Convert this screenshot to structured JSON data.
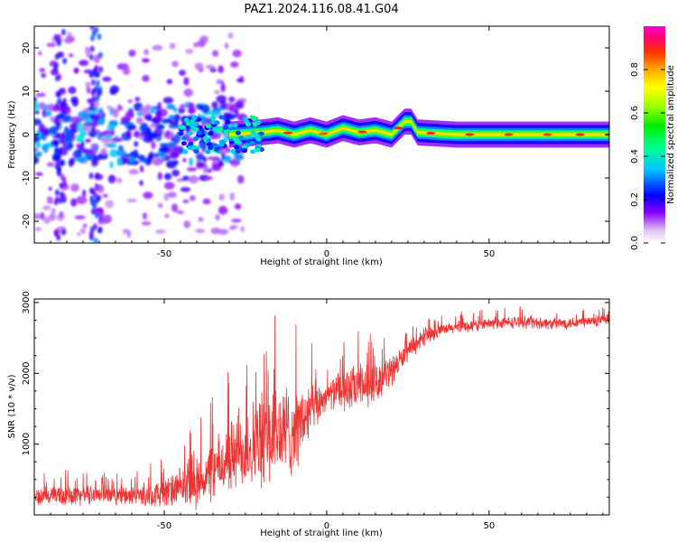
{
  "chart_data": [
    {
      "type": "heatmap",
      "title": "PAZ1.2024.116.08.41.G04",
      "xlabel": "Height of straight line (km)",
      "ylabel": "Frequency (Hz)",
      "xlim": [
        -90,
        87
      ],
      "ylim": [
        -25,
        25
      ],
      "x_ticks": [
        -50,
        0,
        50
      ],
      "x_tick_labels": [
        "-50",
        "0",
        "50"
      ],
      "y_ticks": [
        -20,
        -10,
        0,
        10,
        20
      ],
      "y_tick_labels": [
        "-20",
        "-10",
        "0",
        "10",
        "20"
      ],
      "colorbar": {
        "label": "Normalized spectral amplitude",
        "range": [
          0,
          1
        ],
        "ticks": [
          0.0,
          0.2,
          0.4,
          0.6,
          0.8
        ],
        "tick_labels": [
          "0.0",
          "0.2",
          "0.4",
          "0.6",
          "0.8"
        ],
        "colormap": "gist_ncar (white-purple-blue-cyan-green-yellow-orange-red-magenta)"
      },
      "ridge": {
        "description_points_x": [
          -30,
          -20,
          -15,
          -10,
          -5,
          0,
          5,
          10,
          15,
          20,
          24,
          26,
          28,
          40,
          60,
          87
        ],
        "description_points_y": [
          0,
          0.5,
          1,
          0,
          1,
          0,
          1.5,
          0.5,
          1,
          0,
          3,
          3,
          0.5,
          0,
          0,
          0
        ],
        "peak_amplitude": 1.0
      },
      "scatter_region": {
        "x_range": [
          -90,
          -25
        ],
        "y_range": [
          -25,
          25
        ]
      }
    },
    {
      "type": "line",
      "xlabel": "Height of straight line (km)",
      "ylabel": "SNR (10 * v/v)",
      "xlim": [
        -90,
        87
      ],
      "ylim": [
        0,
        3050
      ],
      "x_ticks": [
        -50,
        0,
        50
      ],
      "x_tick_labels": [
        "-50",
        "0",
        "50"
      ],
      "y_ticks": [
        1000,
        2000,
        3000
      ],
      "y_tick_labels": [
        "1000",
        "2000",
        "3000"
      ],
      "color": "#ee3333",
      "envelope": {
        "x": [
          -90,
          -80,
          -70,
          -60,
          -50,
          -40,
          -35,
          -30,
          -25,
          -20,
          -15,
          -10,
          -5,
          0,
          5,
          10,
          15,
          20,
          25,
          30,
          35,
          40,
          50,
          60,
          70,
          80,
          87
        ],
        "mean": [
          250,
          280,
          300,
          260,
          300,
          450,
          600,
          800,
          950,
          1050,
          1150,
          1200,
          1450,
          1700,
          1750,
          1800,
          1850,
          2050,
          2300,
          2500,
          2600,
          2650,
          2700,
          2730,
          2700,
          2730,
          2750
        ],
        "spread": [
          150,
          180,
          150,
          150,
          250,
          400,
          500,
          600,
          700,
          800,
          900,
          700,
          500,
          200,
          350,
          400,
          300,
          250,
          150,
          120,
          100,
          100,
          100,
          100,
          100,
          100,
          100
        ]
      }
    }
  ]
}
